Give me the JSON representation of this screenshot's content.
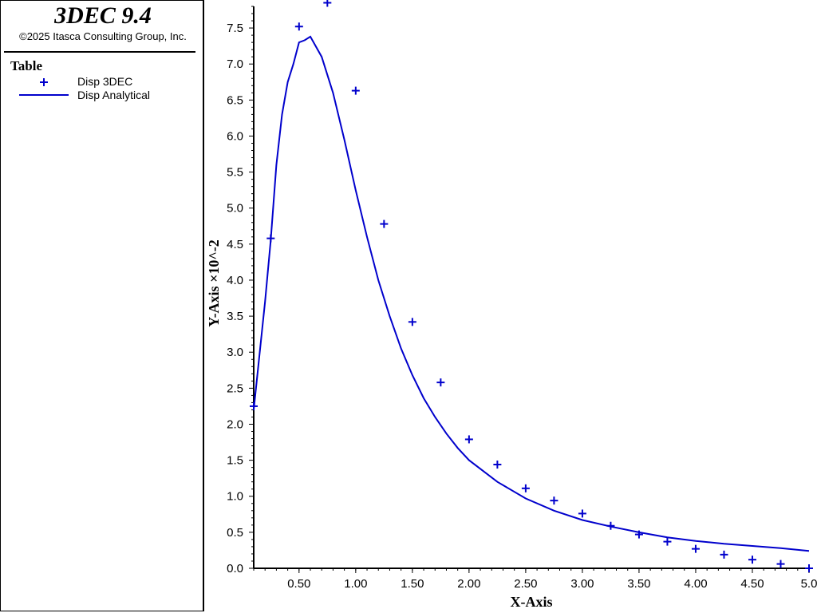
{
  "header": {
    "app_title": "3DEC 9.4",
    "copyright": "©2025 Itasca Consulting Group, Inc."
  },
  "legend": {
    "title": "Table",
    "entries": [
      {
        "label": "Disp 3DEC",
        "marker": "plus",
        "color": "#0000cc"
      },
      {
        "label": "Disp Analytical",
        "marker": "line",
        "color": "#0000cc"
      }
    ]
  },
  "colors": {
    "series": "#0000cc",
    "axis": "#000000",
    "background": "#ffffff"
  },
  "chart_data": {
    "type": "scatter",
    "xlabel": "X-Axis",
    "ylabel": "Y-Axis ×10^-2",
    "xlim": [
      0.1,
      5.0
    ],
    "ylim": [
      0.0,
      7.8
    ],
    "grid": false,
    "legend_position": "left-panel",
    "x_ticks": [
      "0.50",
      "1.00",
      "1.50",
      "2.00",
      "2.50",
      "3.00",
      "3.50",
      "4.00",
      "4.50",
      "5.0"
    ],
    "y_ticks": [
      "0.0",
      "0.5",
      "1.0",
      "1.5",
      "2.0",
      "2.5",
      "3.0",
      "3.5",
      "4.0",
      "4.5",
      "5.0",
      "5.5",
      "6.0",
      "6.5",
      "7.0",
      "7.5"
    ],
    "series": [
      {
        "name": "Disp 3DEC",
        "style": "plus",
        "color": "#0000cc",
        "x": [
          0.1,
          0.25,
          0.5,
          0.75,
          1.0,
          1.25,
          1.5,
          1.75,
          2.0,
          2.25,
          2.5,
          2.75,
          3.0,
          3.25,
          3.5,
          3.75,
          4.0,
          4.25,
          4.5,
          4.75,
          5.0
        ],
        "y": [
          2.25,
          4.58,
          7.52,
          7.85,
          6.63,
          4.78,
          3.42,
          2.58,
          1.79,
          1.44,
          1.11,
          0.94,
          0.76,
          0.59,
          0.47,
          0.37,
          0.27,
          0.19,
          0.12,
          0.06,
          0.0
        ]
      },
      {
        "name": "Disp Analytical",
        "style": "line",
        "color": "#0000cc",
        "x": [
          0.1,
          0.2,
          0.25,
          0.3,
          0.35,
          0.4,
          0.45,
          0.5,
          0.55,
          0.6,
          0.7,
          0.8,
          0.9,
          1.0,
          1.1,
          1.2,
          1.3,
          1.4,
          1.5,
          1.6,
          1.7,
          1.8,
          1.9,
          2.0,
          2.25,
          2.5,
          2.75,
          3.0,
          3.25,
          3.5,
          3.75,
          4.0,
          4.25,
          4.5,
          4.75,
          5.0
        ],
        "y": [
          2.2,
          3.7,
          4.55,
          5.6,
          6.3,
          6.75,
          7.0,
          7.3,
          7.33,
          7.38,
          7.1,
          6.6,
          5.95,
          5.25,
          4.6,
          4.0,
          3.5,
          3.05,
          2.68,
          2.36,
          2.1,
          1.87,
          1.67,
          1.5,
          1.2,
          0.97,
          0.8,
          0.67,
          0.58,
          0.5,
          0.43,
          0.38,
          0.34,
          0.31,
          0.28,
          0.24
        ]
      }
    ]
  }
}
